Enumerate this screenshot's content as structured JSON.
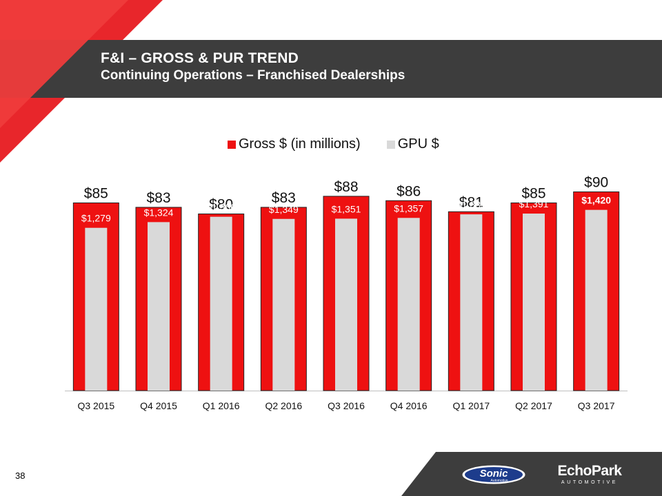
{
  "slide": {
    "title": "F&I – GROSS & PUR TREND",
    "subtitle": "Continuing Operations – Franchised Dealerships",
    "page_number": "38"
  },
  "logos": {
    "sonic": {
      "main": "Sonic",
      "sub": "Automotive"
    },
    "echopark": {
      "main": "EchoPark",
      "sub": "AUTOMOTIVE"
    }
  },
  "colors": {
    "header_bar": "#3d3d3d",
    "accent_red": "#e8262b",
    "gross_bar": "#ee1111",
    "gpu_bar": "#d9d9d9"
  },
  "chart_data": {
    "type": "bar",
    "title": "",
    "xlabel": "",
    "ylabel": "",
    "legend_position": "top",
    "grid": false,
    "categories": [
      "Q3 2015",
      "Q4 2015",
      "Q1 2016",
      "Q2 2016",
      "Q3 2016",
      "Q4 2016",
      "Q1 2017",
      "Q2 2017",
      "Q3 2017"
    ],
    "series": [
      {
        "name": "Gross $ (in millions)",
        "values": [
          85,
          83,
          80,
          83,
          88,
          86,
          81,
          85,
          90
        ],
        "labels": [
          "$85",
          "$83",
          "$80",
          "$83",
          "$88",
          "$86",
          "$81",
          "$85",
          "$90"
        ],
        "ylim": [
          0,
          102
        ]
      },
      {
        "name": "GPU $",
        "values": [
          1279,
          1324,
          1366,
          1349,
          1351,
          1357,
          1385,
          1391,
          1420
        ],
        "labels": [
          "$1,279",
          "$1,324",
          "$1,366",
          "$1,349",
          "$1,351",
          "$1,357",
          "$1,385",
          "$1,391",
          "$1,420"
        ],
        "ylim": [
          0,
          1770
        ]
      }
    ]
  }
}
